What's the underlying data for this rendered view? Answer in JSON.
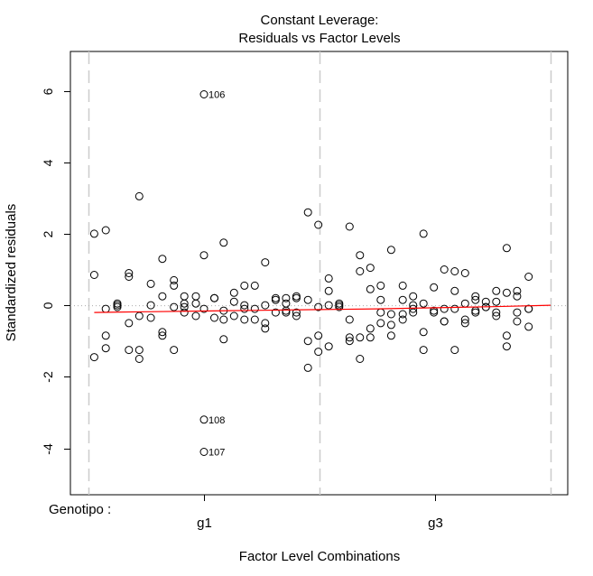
{
  "chart_data": {
    "type": "scatter",
    "title": "Constant Leverage:",
    "subtitle": "Residuals vs Factor Levels",
    "xlabel": "Factor Level Combinations",
    "ylabel": "Standardized residuals",
    "factor_label": "Genotipo :",
    "levels": [
      {
        "name": "g1",
        "range": [
          0,
          2.0
        ]
      },
      {
        "name": "g3",
        "range": [
          2.0,
          4.0
        ]
      }
    ],
    "xlim": [
      0,
      4.0
    ],
    "ylim": [
      -5.3,
      7.1
    ],
    "yticks": [
      -4,
      -2,
      0,
      2,
      4,
      6
    ],
    "ytick_labels": [
      "-4",
      "-2",
      "0",
      "2",
      "4",
      "6"
    ],
    "reference_line_y": 0,
    "colors": {
      "points": "#000000",
      "smoother": "#ff0000",
      "reference": "#aaaaaa",
      "separator": "#cccccc"
    },
    "points": [
      [
        0.05,
        2.0
      ],
      [
        0.05,
        0.85
      ],
      [
        0.05,
        -1.45
      ],
      [
        0.15,
        2.1
      ],
      [
        0.15,
        -0.1
      ],
      [
        0.15,
        -0.85
      ],
      [
        0.15,
        -1.2
      ],
      [
        0.25,
        0.05
      ],
      [
        0.25,
        0.0
      ],
      [
        0.25,
        -0.05
      ],
      [
        0.35,
        0.9
      ],
      [
        0.35,
        0.8
      ],
      [
        0.35,
        -0.5
      ],
      [
        0.35,
        -1.25
      ],
      [
        0.44,
        3.05
      ],
      [
        0.44,
        -0.3
      ],
      [
        0.44,
        -1.25
      ],
      [
        0.44,
        -1.5
      ],
      [
        0.54,
        0.6
      ],
      [
        0.54,
        0.0
      ],
      [
        0.54,
        -0.35
      ],
      [
        0.64,
        1.3
      ],
      [
        0.64,
        0.25
      ],
      [
        0.64,
        -0.75
      ],
      [
        0.64,
        -0.85
      ],
      [
        0.74,
        0.7
      ],
      [
        0.74,
        0.55
      ],
      [
        0.74,
        -0.05
      ],
      [
        0.74,
        -1.25
      ],
      [
        0.83,
        0.25
      ],
      [
        0.83,
        0.05
      ],
      [
        0.83,
        -0.05
      ],
      [
        0.83,
        -0.2
      ],
      [
        0.93,
        0.25
      ],
      [
        0.93,
        0.05
      ],
      [
        0.93,
        -0.3
      ],
      [
        1.0,
        5.9
      ],
      [
        1.0,
        1.4
      ],
      [
        1.0,
        -0.1
      ],
      [
        1.0,
        -3.2
      ],
      [
        1.0,
        -4.1
      ],
      [
        1.09,
        0.2
      ],
      [
        1.09,
        0.2
      ],
      [
        1.09,
        -0.35
      ],
      [
        1.17,
        1.75
      ],
      [
        1.17,
        -0.15
      ],
      [
        1.17,
        -0.4
      ],
      [
        1.17,
        -0.95
      ],
      [
        1.26,
        0.35
      ],
      [
        1.26,
        0.1
      ],
      [
        1.26,
        -0.3
      ],
      [
        1.35,
        0.55
      ],
      [
        1.35,
        0.0
      ],
      [
        1.35,
        -0.1
      ],
      [
        1.35,
        -0.4
      ],
      [
        1.44,
        0.55
      ],
      [
        1.44,
        -0.1
      ],
      [
        1.44,
        -0.4
      ],
      [
        1.53,
        1.2
      ],
      [
        1.53,
        0.0
      ],
      [
        1.53,
        -0.5
      ],
      [
        1.53,
        -0.65
      ],
      [
        1.62,
        0.2
      ],
      [
        1.62,
        0.15
      ],
      [
        1.62,
        -0.2
      ],
      [
        1.71,
        0.2
      ],
      [
        1.71,
        0.05
      ],
      [
        1.71,
        -0.15
      ],
      [
        1.71,
        -0.2
      ],
      [
        1.8,
        0.25
      ],
      [
        1.8,
        0.2
      ],
      [
        1.8,
        -0.2
      ],
      [
        1.8,
        -0.3
      ],
      [
        1.9,
        2.6
      ],
      [
        1.9,
        0.15
      ],
      [
        1.9,
        -1.0
      ],
      [
        1.9,
        -1.75
      ],
      [
        1.99,
        2.25
      ],
      [
        1.99,
        -0.05
      ],
      [
        1.99,
        -0.85
      ],
      [
        1.99,
        -1.3
      ],
      [
        2.08,
        0.75
      ],
      [
        2.08,
        0.4
      ],
      [
        2.08,
        0.0
      ],
      [
        2.08,
        -1.15
      ],
      [
        2.17,
        0.05
      ],
      [
        2.17,
        0.0
      ],
      [
        2.17,
        -0.05
      ],
      [
        2.26,
        2.2
      ],
      [
        2.26,
        -0.4
      ],
      [
        2.26,
        -0.9
      ],
      [
        2.26,
        -1.0
      ],
      [
        2.35,
        1.4
      ],
      [
        2.35,
        0.95
      ],
      [
        2.35,
        -0.9
      ],
      [
        2.35,
        -1.5
      ],
      [
        2.44,
        1.05
      ],
      [
        2.44,
        0.45
      ],
      [
        2.44,
        -0.65
      ],
      [
        2.44,
        -0.9
      ],
      [
        2.53,
        0.55
      ],
      [
        2.53,
        0.15
      ],
      [
        2.53,
        -0.2
      ],
      [
        2.53,
        -0.5
      ],
      [
        2.62,
        1.55
      ],
      [
        2.62,
        -0.25
      ],
      [
        2.62,
        -0.55
      ],
      [
        2.62,
        -0.85
      ],
      [
        2.72,
        0.55
      ],
      [
        2.72,
        0.15
      ],
      [
        2.72,
        -0.25
      ],
      [
        2.72,
        -0.4
      ],
      [
        2.81,
        0.25
      ],
      [
        2.81,
        0.0
      ],
      [
        2.81,
        -0.1
      ],
      [
        2.81,
        -0.2
      ],
      [
        2.9,
        2.0
      ],
      [
        2.9,
        0.05
      ],
      [
        2.9,
        -0.75
      ],
      [
        2.9,
        -1.25
      ],
      [
        2.99,
        0.5
      ],
      [
        2.99,
        -0.15
      ],
      [
        2.99,
        -0.2
      ],
      [
        3.08,
        1.0
      ],
      [
        3.08,
        -0.1
      ],
      [
        3.08,
        -0.45
      ],
      [
        3.08,
        -0.45
      ],
      [
        3.17,
        0.95
      ],
      [
        3.17,
        0.4
      ],
      [
        3.17,
        -0.1
      ],
      [
        3.17,
        -1.25
      ],
      [
        3.26,
        0.9
      ],
      [
        3.26,
        0.05
      ],
      [
        3.26,
        -0.4
      ],
      [
        3.26,
        -0.5
      ],
      [
        3.35,
        0.25
      ],
      [
        3.35,
        0.15
      ],
      [
        3.35,
        -0.15
      ],
      [
        3.35,
        -0.2
      ],
      [
        3.44,
        0.1
      ],
      [
        3.44,
        -0.05
      ],
      [
        3.44,
        -0.05
      ],
      [
        3.53,
        0.4
      ],
      [
        3.53,
        0.1
      ],
      [
        3.53,
        -0.2
      ],
      [
        3.53,
        -0.3
      ],
      [
        3.62,
        1.6
      ],
      [
        3.62,
        0.35
      ],
      [
        3.62,
        -0.85
      ],
      [
        3.62,
        -1.15
      ],
      [
        3.71,
        0.4
      ],
      [
        3.71,
        0.25
      ],
      [
        3.71,
        -0.2
      ],
      [
        3.71,
        -0.45
      ],
      [
        3.81,
        0.8
      ],
      [
        3.81,
        -0.1
      ],
      [
        3.81,
        -0.1
      ],
      [
        3.81,
        -0.6
      ]
    ],
    "annotations": [
      {
        "label": "106",
        "x": 1.0,
        "y": 5.9
      },
      {
        "label": "108",
        "x": 1.0,
        "y": -3.2
      },
      {
        "label": "107",
        "x": 1.0,
        "y": -4.1
      }
    ],
    "smoother": {
      "name": "smoother",
      "x": [
        0.05,
        0.5,
        1.0,
        1.5,
        2.0,
        2.5,
        3.0,
        3.5,
        4.0
      ],
      "y": [
        -0.2,
        -0.18,
        -0.16,
        -0.14,
        -0.12,
        -0.1,
        -0.07,
        -0.04,
        0.0
      ]
    }
  }
}
